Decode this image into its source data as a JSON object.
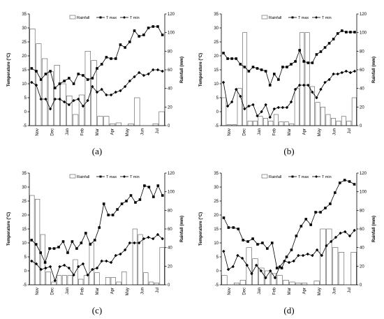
{
  "chart_data": [
    {
      "type": "bar",
      "panel_label": "(a)",
      "months": [
        "Nov",
        "Dec",
        "Jan",
        "Feb",
        "Mar",
        "Apr",
        "May",
        "Jun",
        "Jul"
      ],
      "y_left": {
        "label": "Temperature (°C)",
        "range": [
          -5,
          35
        ],
        "ticks": [
          -5,
          0,
          5,
          10,
          15,
          20,
          25,
          30,
          35
        ]
      },
      "y_right": {
        "label": "Rainfall (mm)",
        "range": [
          0,
          120
        ],
        "ticks": [
          0,
          20,
          40,
          60,
          80,
          100,
          120
        ]
      },
      "legend": [
        "Rainfall",
        "T max",
        "T min"
      ],
      "rainfall": [
        104,
        88,
        72,
        58,
        65,
        45,
        32,
        12,
        33,
        80,
        70,
        10,
        10,
        2,
        3,
        0,
        2,
        30,
        0,
        0,
        2,
        15
      ],
      "t_max": [
        15.5,
        14.5,
        11.5,
        13.5,
        14.5,
        8.5,
        10,
        11,
        12,
        10,
        13.5,
        13,
        11.5,
        12,
        15.5,
        17,
        19.5,
        19,
        19,
        24,
        23,
        25,
        29,
        27,
        27.5,
        30,
        30.5,
        30.5,
        27.5
      ],
      "t_min": [
        10.5,
        9.5,
        4.5,
        4.5,
        1,
        4.5,
        4.5,
        3.5,
        2.5,
        4,
        4.5,
        2,
        4,
        9,
        7,
        8,
        6,
        6,
        7,
        7.5,
        9,
        11,
        12.5,
        14,
        13,
        13.5,
        15,
        15,
        14.5
      ]
    },
    {
      "type": "bar",
      "panel_label": "(b)",
      "months": [
        "Nov",
        "Dec",
        "Jan",
        "Feb",
        "Mar",
        "Apr",
        "May",
        "Jun",
        "Jul"
      ],
      "y_left": {
        "label": "Temperature (°C)",
        "range": [
          -5,
          35
        ],
        "ticks": [
          -5,
          0,
          5,
          10,
          15,
          20,
          25,
          30,
          35
        ]
      },
      "y_right": {
        "label": "Rainfall (mm)",
        "range": [
          0,
          120
        ],
        "ticks": [
          0,
          20,
          40,
          60,
          80,
          100,
          120
        ]
      },
      "legend": [
        "Rainfall",
        "T max",
        "T min"
      ],
      "rainfall": [
        30,
        1,
        1,
        40,
        100,
        5,
        5,
        10,
        8,
        5,
        12,
        4,
        4,
        2,
        40,
        100,
        100,
        42,
        25,
        20,
        12,
        8,
        5,
        10,
        5,
        30
      ],
      "t_max": [
        21,
        19,
        19,
        19,
        17,
        16,
        14.5,
        16,
        15.5,
        15,
        14.5,
        9.5,
        13.5,
        11.5,
        16,
        16,
        17,
        18,
        22,
        18,
        17.5,
        17.5,
        20.5,
        21.5,
        23,
        24.5,
        26,
        28,
        29,
        28.5,
        28.5,
        28.5
      ],
      "t_min": [
        10.5,
        2,
        3.5,
        8,
        5.5,
        1,
        2,
        2.5,
        -1.5,
        0,
        2.5,
        -2,
        1,
        1.5,
        1.5,
        1.5,
        3.5,
        8,
        9.5,
        9.5,
        9.5,
        7,
        5,
        8,
        10.5,
        11.5,
        13.5,
        13.5,
        14,
        14.5,
        14,
        14.5
      ]
    },
    {
      "type": "bar",
      "panel_label": "(c)",
      "months": [
        "Nov",
        "Dec",
        "Jan",
        "Feb",
        "Mar",
        "Apr",
        "May",
        "Jun",
        "Jul"
      ],
      "y_left": {
        "label": "Temperature (°C)",
        "range": [
          -5,
          35
        ],
        "ticks": [
          -5,
          0,
          5,
          10,
          15,
          20,
          25,
          30,
          35
        ]
      },
      "y_right": {
        "label": "Rainfall (mm)",
        "range": [
          0,
          120
        ],
        "ticks": [
          0,
          20,
          40,
          60,
          80,
          100,
          120
        ]
      },
      "legend": [
        "Rainfall",
        "T max",
        "T min"
      ],
      "rainfall": [
        96,
        92,
        54,
        14,
        3,
        10,
        10,
        10,
        27,
        6,
        10,
        45,
        13,
        0,
        8,
        8,
        3,
        14,
        0,
        60,
        54,
        13,
        3,
        2,
        40
      ],
      "t_max": [
        11,
        9.5,
        6.5,
        3,
        8,
        8,
        8.5,
        10.5,
        6.5,
        10.5,
        8,
        10,
        13.5,
        9.5,
        11,
        15.5,
        24,
        20,
        20,
        22,
        24,
        25,
        27,
        24.5,
        25.5,
        30.5,
        30,
        26.5,
        30.5,
        27
      ],
      "t_min": [
        3.5,
        2.5,
        0.5,
        1,
        1.5,
        -3.5,
        1.5,
        2,
        1,
        -1.5,
        1.5,
        2.5,
        -1.5,
        0.5,
        1,
        3.5,
        3.5,
        3,
        5.5,
        6,
        7.5,
        10,
        10,
        10,
        11.5,
        12,
        11.5,
        13,
        11.5
      ]
    },
    {
      "type": "bar",
      "panel_label": "(d)",
      "months": [
        "Nov",
        "Dec",
        "Jan",
        "Feb",
        "Mar",
        "Apr",
        "May",
        "Jun",
        "Jul"
      ],
      "y_left": {
        "label": "Temperature (°C)",
        "range": [
          -5,
          35
        ],
        "ticks": [
          -5,
          0,
          5,
          10,
          15,
          20,
          25,
          30,
          35
        ]
      },
      "y_right": {
        "label": "Rainfall (mm)",
        "range": [
          0,
          120
        ],
        "ticks": [
          0,
          20,
          40,
          60,
          80,
          100,
          120
        ]
      },
      "legend": [
        "Rainfall",
        "T max",
        "T min"
      ],
      "rainfall": [
        10,
        0,
        2,
        5,
        40,
        28,
        18,
        15,
        12,
        10,
        5,
        3,
        2,
        2,
        0,
        4,
        60,
        60,
        40,
        35,
        0,
        35
      ],
      "t_max": [
        19,
        15.5,
        15.5,
        15,
        11,
        10.5,
        11.5,
        9.5,
        10,
        8,
        10,
        1,
        1,
        5,
        7.5,
        12.5,
        16,
        18.5,
        16.5,
        21,
        21,
        22.5,
        24,
        28,
        31.5,
        32.5,
        32,
        31
      ],
      "t_min": [
        7,
        0.5,
        1.5,
        5.5,
        4.5,
        2,
        -1,
        2,
        0,
        -2.5,
        0,
        -2.5,
        1.5,
        3.5,
        3,
        3.5,
        5.5,
        5.5,
        6,
        5.5,
        7.5,
        5.5,
        9,
        10.5,
        12,
        13.5,
        14,
        12.5,
        14.5
      ]
    }
  ]
}
